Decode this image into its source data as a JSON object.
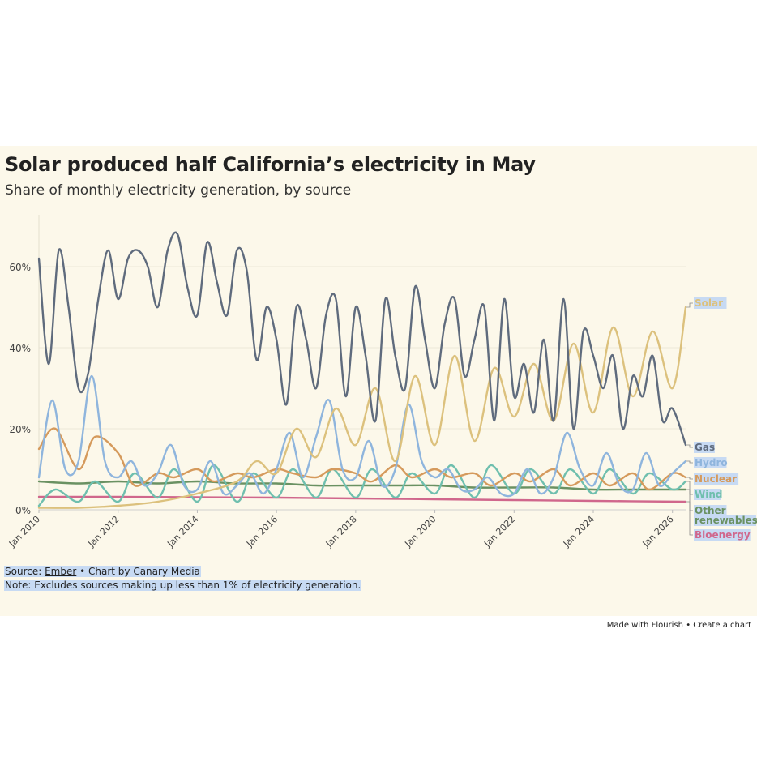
{
  "title": "Solar produced half California’s electricity in May",
  "subtitle": "Share of monthly electricity generation, by source",
  "footer": {
    "source_prefix": "Source: ",
    "source_link": "Ember",
    "source_suffix": " • Chart by Canary Media",
    "note": "Note: Excludes sources making up less than 1% of electricity generation."
  },
  "flourish": {
    "made_with": "Made with Flourish",
    "separator": "•",
    "create": "Create a chart"
  },
  "chart_data": {
    "type": "line",
    "x_unit": "month",
    "x_range": [
      "2010-01",
      "2026-05"
    ],
    "yticks": [
      "0%",
      "20%",
      "40%",
      "60%"
    ],
    "ytick_values": [
      0,
      20,
      40,
      60
    ],
    "xticks": [
      "Jan 2010",
      "Jan 2012",
      "Jan 2014",
      "Jan 2016",
      "Jan 2018",
      "Jan 2020",
      "Jan 2022",
      "Jan 2024",
      "Jan 2026"
    ],
    "ylim": [
      0,
      70
    ],
    "grid": true,
    "legend": "direct labels at right end of lines",
    "series": [
      {
        "name": "Gas",
        "color": "#5f6b7d",
        "x": [
          "2010-01",
          "2010-04",
          "2010-07",
          "2010-10",
          "2011-01",
          "2011-04",
          "2011-07",
          "2011-10",
          "2012-01",
          "2012-04",
          "2012-07",
          "2012-10",
          "2013-01",
          "2013-04",
          "2013-07",
          "2013-10",
          "2014-01",
          "2014-04",
          "2014-07",
          "2014-10",
          "2015-01",
          "2015-04",
          "2015-07",
          "2015-10",
          "2016-01",
          "2016-04",
          "2016-07",
          "2016-10",
          "2017-01",
          "2017-04",
          "2017-07",
          "2017-10",
          "2018-01",
          "2018-04",
          "2018-07",
          "2018-10",
          "2019-01",
          "2019-04",
          "2019-07",
          "2019-10",
          "2020-01",
          "2020-04",
          "2020-07",
          "2020-10",
          "2021-01",
          "2021-04",
          "2021-07",
          "2021-10",
          "2022-01",
          "2022-04",
          "2022-07",
          "2022-10",
          "2023-01",
          "2023-04",
          "2023-07",
          "2023-10",
          "2024-01",
          "2024-04",
          "2024-07",
          "2024-10",
          "2025-01",
          "2025-04",
          "2025-07",
          "2025-10",
          "2026-01",
          "2026-05"
        ],
        "values": [
          62,
          36,
          64,
          50,
          30,
          34,
          52,
          64,
          52,
          62,
          64,
          60,
          50,
          64,
          68,
          55,
          48,
          66,
          56,
          48,
          64,
          59,
          37,
          50,
          42,
          26,
          50,
          42,
          30,
          48,
          52,
          28,
          50,
          38,
          22,
          52,
          38,
          30,
          55,
          42,
          30,
          46,
          52,
          33,
          42,
          50,
          22,
          52,
          28,
          36,
          24,
          42,
          22,
          52,
          20,
          44,
          38,
          30,
          38,
          20,
          33,
          28,
          38,
          22,
          25,
          16
        ]
      },
      {
        "name": "Solar",
        "color": "#dcc17d",
        "x": [
          "2010-01",
          "2011-01",
          "2012-01",
          "2013-01",
          "2014-01",
          "2015-01",
          "2015-07",
          "2016-01",
          "2016-07",
          "2017-01",
          "2017-07",
          "2018-01",
          "2018-07",
          "2019-01",
          "2019-07",
          "2020-01",
          "2020-07",
          "2021-01",
          "2021-07",
          "2022-01",
          "2022-07",
          "2023-01",
          "2023-07",
          "2024-01",
          "2024-07",
          "2025-01",
          "2025-07",
          "2026-01",
          "2026-05"
        ],
        "values": [
          0.5,
          0.5,
          1,
          2,
          4,
          7,
          12,
          9,
          20,
          13,
          25,
          16,
          30,
          12,
          33,
          16,
          38,
          17,
          35,
          23,
          36,
          22,
          41,
          24,
          45,
          28,
          44,
          30,
          50
        ]
      },
      {
        "name": "Hydro",
        "color": "#8fb5dd",
        "x": [
          "2010-01",
          "2010-05",
          "2010-09",
          "2011-01",
          "2011-05",
          "2011-09",
          "2012-01",
          "2012-05",
          "2012-09",
          "2013-01",
          "2013-05",
          "2013-09",
          "2014-01",
          "2014-05",
          "2014-09",
          "2015-01",
          "2015-05",
          "2015-09",
          "2016-01",
          "2016-05",
          "2016-09",
          "2017-01",
          "2017-05",
          "2017-09",
          "2018-01",
          "2018-05",
          "2018-09",
          "2019-01",
          "2019-05",
          "2019-09",
          "2020-01",
          "2020-05",
          "2020-09",
          "2021-01",
          "2021-05",
          "2021-09",
          "2022-01",
          "2022-05",
          "2022-09",
          "2023-01",
          "2023-05",
          "2023-09",
          "2024-01",
          "2024-05",
          "2024-09",
          "2025-01",
          "2025-05",
          "2025-09",
          "2026-01",
          "2026-05"
        ],
        "values": [
          8,
          27,
          10,
          12,
          33,
          12,
          8,
          12,
          6,
          9,
          16,
          6,
          5,
          12,
          4,
          6,
          9,
          4,
          10,
          19,
          8,
          18,
          27,
          10,
          8,
          17,
          6,
          10,
          26,
          12,
          8,
          10,
          5,
          5,
          8,
          4,
          4,
          10,
          4,
          8,
          19,
          10,
          6,
          14,
          6,
          5,
          14,
          6,
          9,
          12
        ]
      },
      {
        "name": "Nuclear",
        "color": "#d59a5c",
        "x": [
          "2010-01",
          "2010-06",
          "2011-01",
          "2011-06",
          "2012-01",
          "2012-06",
          "2013-01",
          "2013-06",
          "2014-01",
          "2014-06",
          "2015-01",
          "2015-06",
          "2016-01",
          "2016-06",
          "2017-01",
          "2017-06",
          "2018-01",
          "2018-06",
          "2019-01",
          "2019-06",
          "2020-01",
          "2020-06",
          "2021-01",
          "2021-06",
          "2022-01",
          "2022-06",
          "2023-01",
          "2023-06",
          "2024-01",
          "2024-06",
          "2025-01",
          "2025-06",
          "2026-01",
          "2026-05"
        ],
        "values": [
          15,
          20,
          10,
          18,
          14,
          6,
          9,
          8,
          10,
          7,
          9,
          8,
          10,
          9,
          8,
          10,
          9,
          7,
          11,
          8,
          10,
          8,
          9,
          6,
          9,
          7,
          10,
          6,
          9,
          6,
          9,
          5,
          9,
          8
        ]
      },
      {
        "name": "Wind",
        "color": "#6fbfae",
        "x": [
          "2010-01",
          "2010-06",
          "2011-01",
          "2011-06",
          "2012-01",
          "2012-06",
          "2013-01",
          "2013-06",
          "2014-01",
          "2014-06",
          "2015-01",
          "2015-06",
          "2016-01",
          "2016-06",
          "2017-01",
          "2017-06",
          "2018-01",
          "2018-06",
          "2019-01",
          "2019-06",
          "2020-01",
          "2020-06",
          "2021-01",
          "2021-06",
          "2022-01",
          "2022-06",
          "2023-01",
          "2023-06",
          "2024-01",
          "2024-06",
          "2025-01",
          "2025-06",
          "2026-01",
          "2026-05"
        ],
        "values": [
          1,
          5,
          2,
          7,
          2,
          9,
          3,
          10,
          2,
          11,
          2,
          9,
          3,
          10,
          3,
          10,
          3,
          10,
          3,
          9,
          4,
          11,
          3,
          11,
          4,
          10,
          4,
          10,
          4,
          10,
          4,
          9,
          5,
          7
        ]
      },
      {
        "name": "Other renewables",
        "color": "#6a9162",
        "x": [
          "2010-01",
          "2011-01",
          "2012-01",
          "2013-01",
          "2014-01",
          "2015-01",
          "2016-01",
          "2017-01",
          "2018-01",
          "2019-01",
          "2020-01",
          "2021-01",
          "2022-01",
          "2023-01",
          "2024-01",
          "2025-01",
          "2026-05"
        ],
        "values": [
          7,
          6.5,
          7,
          6.5,
          7,
          6.5,
          6.5,
          6,
          6,
          6,
          6,
          5.5,
          5.5,
          5.5,
          5,
          5,
          5
        ]
      },
      {
        "name": "Bioenergy",
        "color": "#d0678c",
        "x": [
          "2010-01",
          "2012-01",
          "2014-01",
          "2016-01",
          "2018-01",
          "2020-01",
          "2022-01",
          "2024-01",
          "2026-05"
        ],
        "values": [
          3.2,
          3.2,
          3.1,
          3.0,
          2.8,
          2.6,
          2.4,
          2.2,
          2.0
        ]
      }
    ]
  }
}
